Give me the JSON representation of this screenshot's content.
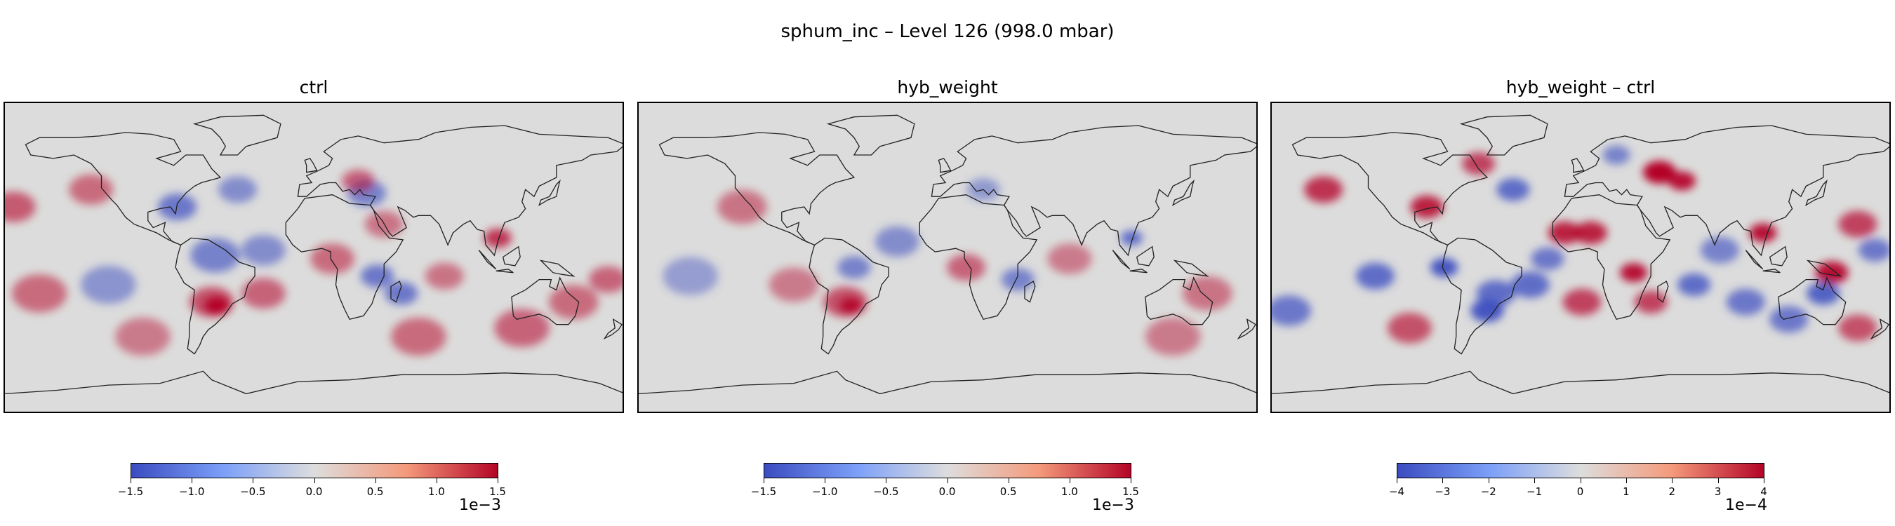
{
  "title": "sphum_inc – Level 126 (998.0 mbar)",
  "colormap": {
    "name": "coolwarm",
    "low": "#3b4cc0",
    "mid": "#dddddd",
    "high": "#b40426"
  },
  "chart_data": [
    {
      "type": "heatmap",
      "title": "ctrl",
      "colorbar": {
        "vmin": -1.5,
        "vmax": 1.5,
        "ticks": [
          -1.5,
          -1.0,
          -0.5,
          0.0,
          0.5,
          1.0,
          1.5
        ],
        "tick_labels": [
          "−1.5",
          "−1.0",
          "−0.5",
          "0.0",
          "0.5",
          "1.0",
          "1.5"
        ],
        "offset_label": "1e−3"
      }
    },
    {
      "type": "heatmap",
      "title": "hyb_weight",
      "colorbar": {
        "vmin": -1.5,
        "vmax": 1.5,
        "ticks": [
          -1.5,
          -1.0,
          -0.5,
          0.0,
          0.5,
          1.0,
          1.5
        ],
        "tick_labels": [
          "−1.5",
          "−1.0",
          "−0.5",
          "0.0",
          "0.5",
          "1.0",
          "1.5"
        ],
        "offset_label": "1e−3"
      }
    },
    {
      "type": "heatmap",
      "title": "hyb_weight – ctrl",
      "colorbar": {
        "vmin": -4,
        "vmax": 4,
        "ticks": [
          -4,
          -3,
          -2,
          -1,
          0,
          1,
          2,
          3,
          4
        ],
        "tick_labels": [
          "−4",
          "−3",
          "−2",
          "−1",
          "0",
          "1",
          "2",
          "3",
          "4"
        ],
        "offset_label": "1e−4"
      }
    }
  ]
}
